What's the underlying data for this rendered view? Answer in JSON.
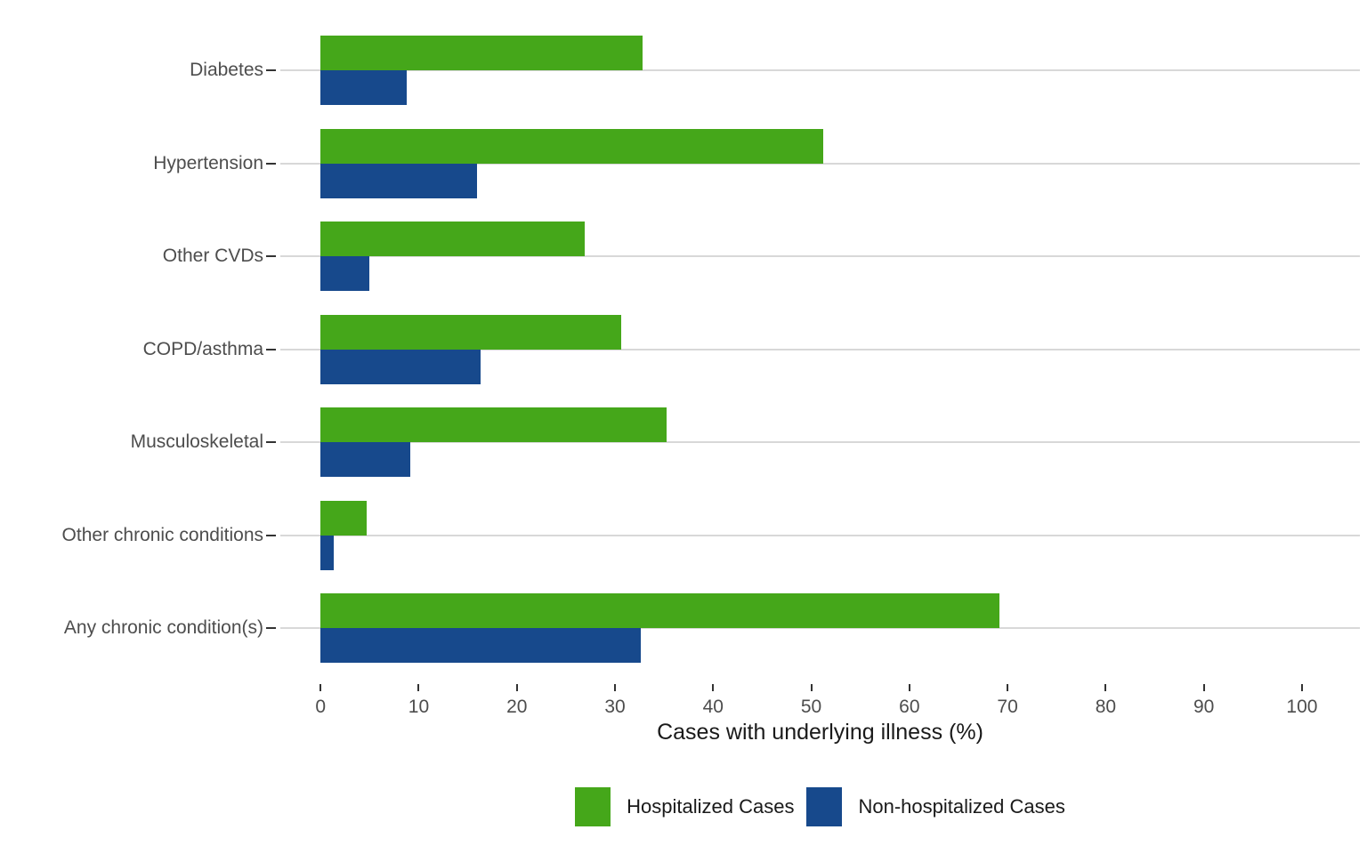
{
  "chart_data": {
    "type": "bar",
    "orientation": "horizontal",
    "title": "",
    "xlabel": "Cases with underlying illness (%)",
    "ylabel": "",
    "categories": [
      "Diabetes",
      "Hypertension",
      "Other CVDs",
      "COPD/asthma",
      "Musculoskeletal",
      "Other chronic conditions",
      "Any chronic condition(s)"
    ],
    "series": [
      {
        "name": "Hospitalized Cases",
        "color": "#45A71A",
        "values": [
          32.8,
          51.2,
          26.9,
          30.6,
          35.3,
          4.7,
          69.2
        ]
      },
      {
        "name": "Non-hospitalized Cases",
        "color": "#17498C",
        "values": [
          8.8,
          15.9,
          5.0,
          16.3,
          9.1,
          1.3,
          32.6
        ]
      }
    ],
    "x_ticks": [
      0,
      10,
      20,
      30,
      40,
      50,
      60,
      70,
      80,
      90,
      100
    ],
    "xlim": [
      0,
      100
    ],
    "panel_xlim": [
      -4.1,
      105.9
    ],
    "grid": "major-y-only",
    "legend_position": "bottom",
    "colors": {
      "grid": "#D8D8D8",
      "tick": "#333333",
      "axis_text": "#4D4D4D",
      "title_text": "#1A1A1A",
      "background": "#FFFFFF"
    }
  }
}
